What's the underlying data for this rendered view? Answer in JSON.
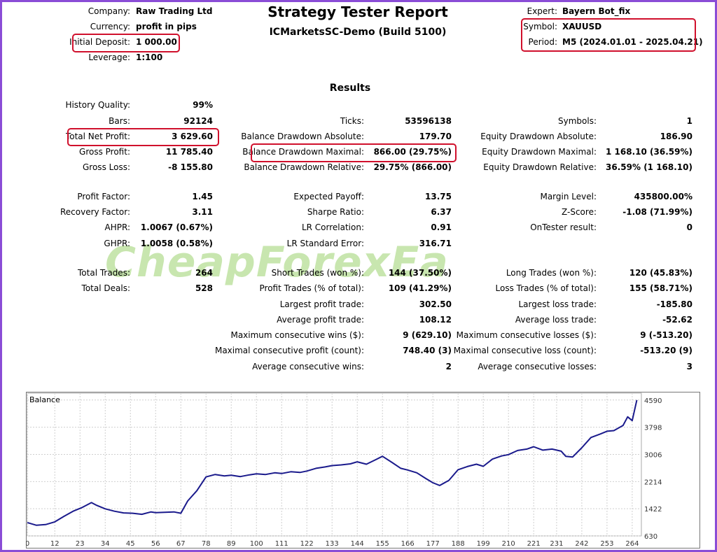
{
  "header": {
    "title": "Strategy Tester Report",
    "subtitle": "ICMarketsSC-Demo (Build 5100)",
    "company_label": "Company:",
    "company": "Raw Trading Ltd",
    "currency_label": "Currency:",
    "currency": "profit in pips",
    "deposit_label": "Initial Deposit:",
    "deposit": "1 000.00",
    "leverage_label": "Leverage:",
    "leverage": "1:100",
    "expert_label": "Expert:",
    "expert": "Bayern Bot_fix",
    "symbol_label": "Symbol:",
    "symbol": "XAUUSD",
    "period_label": "Period:",
    "period": "M5 (2024.01.01 - 2025.04.21)"
  },
  "results_title": "Results",
  "col1": [
    {
      "l": "History Quality:",
      "v": "99%"
    },
    {
      "l": "Bars:",
      "v": "92124"
    },
    {
      "l": "Total Net Profit:",
      "v": "3 629.60"
    },
    {
      "l": "Gross Profit:",
      "v": "11 785.40"
    },
    {
      "l": "Gross Loss:",
      "v": "-8 155.80"
    },
    {
      "l": "Profit Factor:",
      "v": "1.45"
    },
    {
      "l": "Recovery Factor:",
      "v": "3.11"
    },
    {
      "l": "AHPR:",
      "v": "1.0067 (0.67%)"
    },
    {
      "l": "GHPR:",
      "v": "1.0058 (0.58%)"
    },
    {
      "l": "Total Trades:",
      "v": "264"
    },
    {
      "l": "Total Deals:",
      "v": "528"
    }
  ],
  "col2": [
    {
      "l": "Ticks:",
      "v": "53596138"
    },
    {
      "l": "Balance Drawdown Absolute:",
      "v": "179.70"
    },
    {
      "l": "Balance Drawdown Maximal:",
      "v": "866.00 (29.75%)"
    },
    {
      "l": "Balance Drawdown Relative:",
      "v": "29.75% (866.00)"
    },
    {
      "l": "Expected Payoff:",
      "v": "13.75"
    },
    {
      "l": "Sharpe Ratio:",
      "v": "6.37"
    },
    {
      "l": "LR Correlation:",
      "v": "0.91"
    },
    {
      "l": "LR Standard Error:",
      "v": "316.71"
    },
    {
      "l": "Short Trades (won %):",
      "v": "144 (37.50%)"
    },
    {
      "l": "Profit Trades (% of total):",
      "v": "109 (41.29%)"
    },
    {
      "l": "Largest profit trade:",
      "v": "302.50"
    },
    {
      "l": "Average profit trade:",
      "v": "108.12"
    },
    {
      "l": "Maximum consecutive wins ($):",
      "v": "9 (629.10)"
    },
    {
      "l": "Maximal consecutive profit (count):",
      "v": "748.40 (3)"
    },
    {
      "l": "Average consecutive wins:",
      "v": "2"
    }
  ],
  "col3": [
    {
      "l": "Symbols:",
      "v": "1"
    },
    {
      "l": "Equity Drawdown Absolute:",
      "v": "186.90"
    },
    {
      "l": "Equity Drawdown Maximal:",
      "v": "1 168.10 (36.59%)"
    },
    {
      "l": "Equity Drawdown Relative:",
      "v": "36.59% (1 168.10)"
    },
    {
      "l": "Margin Level:",
      "v": "435800.00%"
    },
    {
      "l": "Z-Score:",
      "v": "-1.08 (71.99%)"
    },
    {
      "l": "OnTester result:",
      "v": "0"
    },
    {
      "l": "Long Trades (won %):",
      "v": "120 (45.83%)"
    },
    {
      "l": "Loss Trades (% of total):",
      "v": "155 (58.71%)"
    },
    {
      "l": "Largest loss trade:",
      "v": "-185.80"
    },
    {
      "l": "Average loss trade:",
      "v": "-52.62"
    },
    {
      "l": "Maximum consecutive losses ($):",
      "v": "9 (-513.20)"
    },
    {
      "l": "Maximal consecutive loss (count):",
      "v": "-513.20 (9)"
    },
    {
      "l": "Average consecutive losses:",
      "v": "3"
    }
  ],
  "watermark": "CheapForexEa",
  "highlight_color": "#d0102c",
  "chart_data": {
    "type": "line",
    "title": "Balance",
    "x_ticks": [
      "0",
      "12",
      "23",
      "34",
      "45",
      "56",
      "67",
      "78",
      "89",
      "100",
      "111",
      "122",
      "133",
      "144",
      "155",
      "166",
      "177",
      "188",
      "199",
      "210",
      "221",
      "231",
      "242",
      "253",
      "264"
    ],
    "y_ticks": [
      "630",
      "1422",
      "2214",
      "3006",
      "3798",
      "4590"
    ],
    "xlim": [
      0,
      268
    ],
    "ylim": [
      630,
      4790
    ],
    "series": [
      {
        "color": "#1a1a8c",
        "x": [
          0,
          4,
          8,
          12,
          16,
          20,
          24,
          28,
          30,
          34,
          38,
          42,
          46,
          50,
          54,
          56,
          60,
          64,
          67,
          70,
          74,
          78,
          82,
          86,
          89,
          93,
          97,
          100,
          104,
          108,
          111,
          115,
          119,
          122,
          126,
          130,
          133,
          137,
          141,
          144,
          148,
          152,
          155,
          159,
          163,
          166,
          170,
          174,
          177,
          180,
          184,
          188,
          192,
          196,
          199,
          203,
          207,
          210,
          214,
          218,
          221,
          225,
          229,
          233,
          235,
          238,
          242,
          246,
          250,
          253,
          256,
          260,
          262,
          264,
          266
        ],
        "y": [
          1020,
          940,
          960,
          1040,
          1200,
          1350,
          1460,
          1600,
          1530,
          1420,
          1350,
          1300,
          1290,
          1260,
          1330,
          1310,
          1320,
          1330,
          1290,
          1650,
          1950,
          2350,
          2420,
          2380,
          2400,
          2360,
          2410,
          2440,
          2420,
          2470,
          2450,
          2500,
          2480,
          2520,
          2600,
          2640,
          2680,
          2700,
          2730,
          2790,
          2720,
          2850,
          2950,
          2780,
          2600,
          2550,
          2470,
          2300,
          2180,
          2100,
          2250,
          2560,
          2650,
          2720,
          2660,
          2870,
          2960,
          3000,
          3120,
          3160,
          3230,
          3130,
          3160,
          3100,
          2950,
          2930,
          3200,
          3500,
          3600,
          3680,
          3700,
          3850,
          4100,
          3990,
          4590
        ]
      }
    ]
  }
}
